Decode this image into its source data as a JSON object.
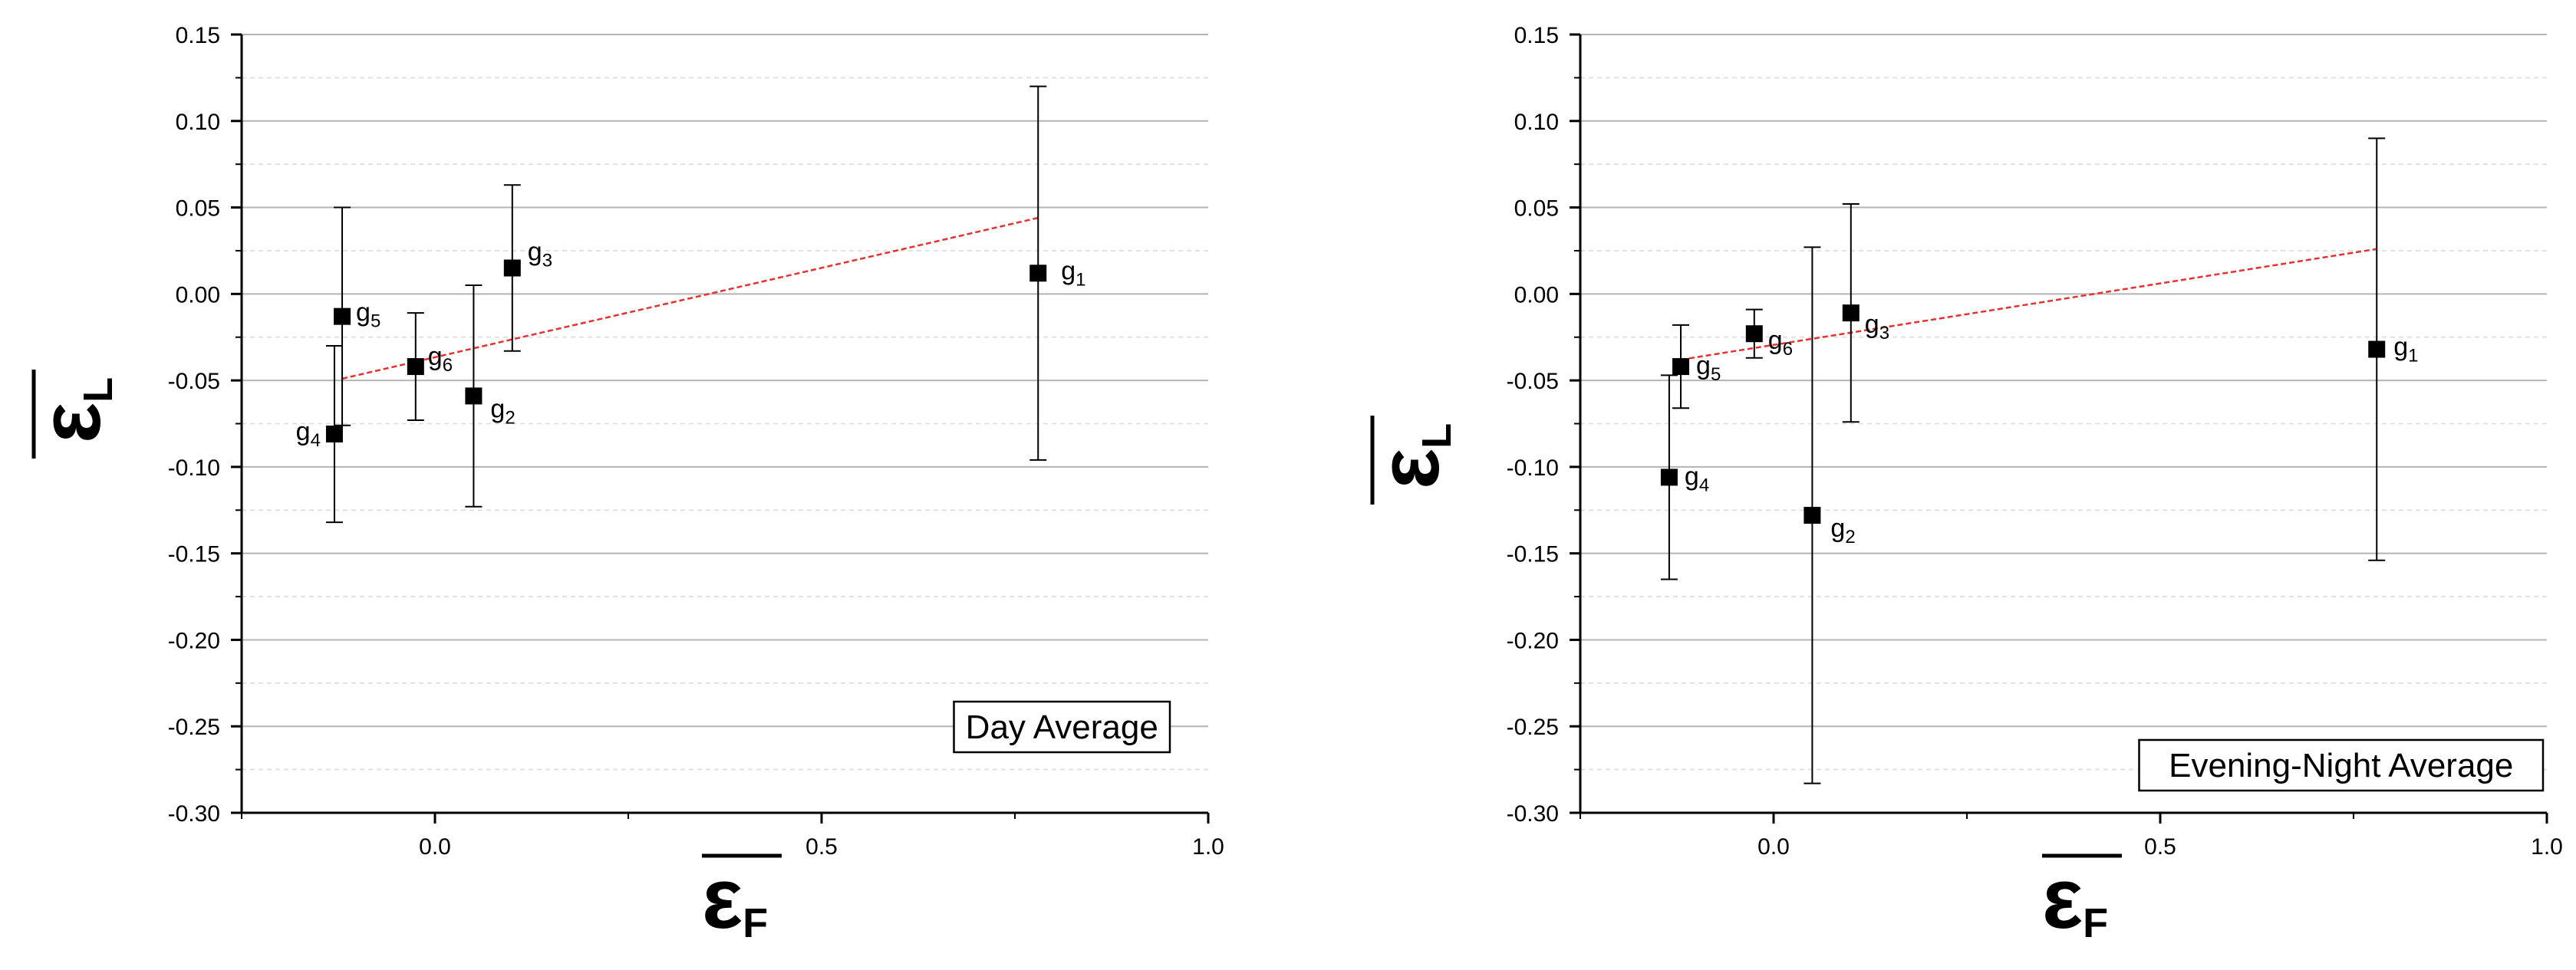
{
  "chart_data": [
    {
      "type": "scatter",
      "title": "",
      "annotation": "Day Average",
      "xlabel": {
        "symbol": "ε",
        "subscript": "F"
      },
      "ylabel": {
        "symbol": "ε",
        "subscript": "L"
      },
      "xlim": [
        -0.25,
        1.0
      ],
      "ylim": [
        -0.3,
        0.15
      ],
      "xticks": [
        "0.0",
        "0.5",
        "1.0"
      ],
      "yticks": [
        "0.15",
        "0.10",
        "0.05",
        "0.00",
        "-0.05",
        "-0.10",
        "-0.15",
        "-0.20",
        "-0.25",
        "-0.30"
      ],
      "grid": true,
      "points": [
        {
          "label": "g",
          "sub": "1",
          "x": 0.78,
          "y": 0.012,
          "err": 0.108
        },
        {
          "label": "g",
          "sub": "2",
          "x": 0.05,
          "y": -0.059,
          "err": 0.064
        },
        {
          "label": "g",
          "sub": "3",
          "x": 0.1,
          "y": 0.015,
          "err": 0.048
        },
        {
          "label": "g",
          "sub": "4",
          "x": -0.13,
          "y": -0.081,
          "err": 0.051
        },
        {
          "label": "g",
          "sub": "5",
          "x": -0.12,
          "y": -0.013,
          "err": 0.063
        },
        {
          "label": "g",
          "sub": "6",
          "x": -0.025,
          "y": -0.042,
          "err": 0.031
        }
      ],
      "fit_line": {
        "x": [
          -0.12,
          0.78
        ],
        "y": [
          -0.049,
          0.044
        ],
        "color": "#e8312f"
      }
    },
    {
      "type": "scatter",
      "title": "",
      "annotation": "Evening-Night Average",
      "xlabel": {
        "symbol": "ε",
        "subscript": "F"
      },
      "ylabel": {
        "symbol": "ε",
        "subscript": "L"
      },
      "xlim": [
        -0.25,
        1.0
      ],
      "ylim": [
        -0.3,
        0.15
      ],
      "xticks": [
        "0.0",
        "0.5",
        "1.0"
      ],
      "yticks": [
        "0.15",
        "0.10",
        "0.05",
        "0.00",
        "-0.05",
        "-0.10",
        "-0.15",
        "-0.20",
        "-0.25",
        "-0.30"
      ],
      "grid": true,
      "points": [
        {
          "label": "g",
          "sub": "1",
          "x": 0.78,
          "y": -0.032,
          "err": 0.122
        },
        {
          "label": "g",
          "sub": "2",
          "x": 0.05,
          "y": -0.128,
          "err": 0.155
        },
        {
          "label": "g",
          "sub": "3",
          "x": 0.1,
          "y": -0.011,
          "err": 0.063
        },
        {
          "label": "g",
          "sub": "4",
          "x": -0.135,
          "y": -0.106,
          "err": 0.059
        },
        {
          "label": "g",
          "sub": "5",
          "x": -0.12,
          "y": -0.042,
          "err": 0.024
        },
        {
          "label": "g",
          "sub": "6",
          "x": -0.025,
          "y": -0.023,
          "err": 0.014
        }
      ],
      "fit_line": {
        "x": [
          -0.12,
          0.78
        ],
        "y": [
          -0.038,
          0.026
        ],
        "color": "#e8312f"
      }
    }
  ]
}
